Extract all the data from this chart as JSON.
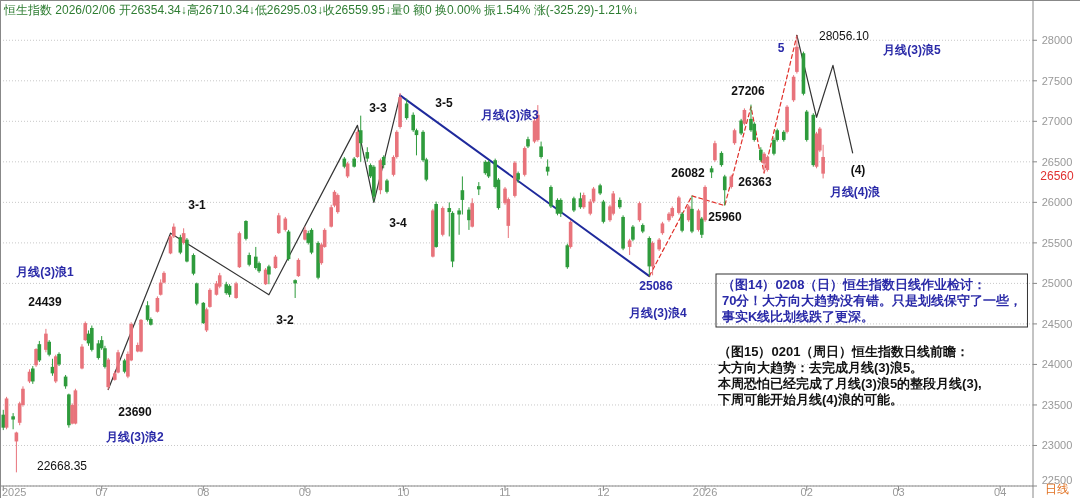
{
  "chart_data": {
    "type": "candlestick",
    "title": "恒生指数 2026/02/06 开26354.34↓高26710.34↓低26295.03↓收26559.95↓量0 额0 换0.00% 振1.54% 涨(-325.29)-1.21%↓",
    "x": [
      "2025-06-01",
      "2025-06-02",
      "2025-06-04",
      "2025-06-05",
      "2025-06-06",
      "2025-06-07",
      "2025-06-09",
      "2025-06-10",
      "2025-06-11",
      "2025-06-12",
      "2025-06-14",
      "2025-06-15",
      "2025-06-16",
      "2025-06-17",
      "2025-06-18",
      "2025-06-20",
      "2025-06-21",
      "2025-06-22",
      "2025-06-23",
      "2025-06-25",
      "2025-06-26",
      "2025-06-27",
      "2025-06-28",
      "2025-06-30",
      "2025-07-01",
      "2025-07-02",
      "2025-07-03",
      "2025-07-05",
      "2025-07-06",
      "2025-07-08",
      "2025-07-09",
      "2025-07-10",
      "2025-07-12",
      "2025-07-13",
      "2025-07-15",
      "2025-07-16",
      "2025-07-18",
      "2025-07-19",
      "2025-07-20",
      "2025-07-22",
      "2025-07-23",
      "2025-07-25",
      "2025-07-26",
      "2025-07-27",
      "2025-07-29",
      "2025-07-30",
      "2025-08-01",
      "2025-08-02",
      "2025-08-03",
      "2025-08-05",
      "2025-08-06",
      "2025-08-08",
      "2025-08-09",
      "2025-08-11",
      "2025-08-12",
      "2025-08-14",
      "2025-08-15",
      "2025-08-17",
      "2025-08-18",
      "2025-08-20",
      "2025-08-21",
      "2025-08-23",
      "2025-08-24",
      "2025-08-26",
      "2025-08-27",
      "2025-08-29",
      "2025-08-30",
      "2025-09-01",
      "2025-09-02",
      "2025-09-03",
      "2025-09-05",
      "2025-09-06",
      "2025-09-07",
      "2025-09-09",
      "2025-09-10",
      "2025-09-11",
      "2025-09-13",
      "2025-09-14",
      "2025-09-16",
      "2025-09-17",
      "2025-09-18",
      "2025-09-20",
      "2025-09-21",
      "2025-09-22",
      "2025-09-24",
      "2025-09-25",
      "2025-09-26",
      "2025-09-28",
      "2025-09-29",
      "2025-09-30",
      "2025-10-02",
      "2025-10-04",
      "2025-10-05",
      "2025-10-07",
      "2025-10-08",
      "2025-10-10",
      "2025-10-11",
      "2025-10-13",
      "2025-10-15",
      "2025-10-16",
      "2025-10-18",
      "2025-10-19",
      "2025-10-21",
      "2025-10-22",
      "2025-10-24",
      "2025-10-26",
      "2025-10-27",
      "2025-10-29",
      "2025-10-30",
      "2025-11-01",
      "2025-11-02",
      "2025-11-04",
      "2025-11-05",
      "2025-11-07",
      "2025-11-08",
      "2025-11-10",
      "2025-11-11",
      "2025-11-12",
      "2025-11-14",
      "2025-11-15",
      "2025-11-17",
      "2025-11-18",
      "2025-11-20",
      "2025-11-21",
      "2025-11-22",
      "2025-11-24",
      "2025-11-25",
      "2025-11-27",
      "2025-11-28",
      "2025-11-30",
      "2025-12-01",
      "2025-12-03",
      "2025-12-04",
      "2025-12-06",
      "2025-12-07",
      "2025-12-09",
      "2025-12-10",
      "2025-12-12",
      "2025-12-13",
      "2025-12-15",
      "2025-12-16",
      "2025-12-18",
      "2025-12-19",
      "2025-12-21",
      "2025-12-22",
      "2025-12-24",
      "2025-12-25",
      "2025-12-27",
      "2025-12-28",
      "2025-12-30",
      "2025-12-31",
      "2026-01-01",
      "2026-01-03",
      "2026-01-04",
      "2026-01-06",
      "2026-01-07",
      "2026-01-09",
      "2026-01-10",
      "2026-01-12",
      "2026-01-13",
      "2026-01-15",
      "2026-01-16",
      "2026-01-18",
      "2026-01-19",
      "2026-01-20",
      "2026-01-22",
      "2026-01-23",
      "2026-01-25",
      "2026-01-26",
      "2026-01-28",
      "2026-01-29",
      "2026-01-31",
      "2026-02-01",
      "2026-02-03",
      "2026-02-04",
      "2026-02-05",
      "2026-02-06"
    ],
    "ohlc": [
      [
        23380,
        23440,
        23190,
        23220
      ],
      [
        23220,
        23600,
        23200,
        23580
      ],
      [
        23360,
        23400,
        23200,
        23320
      ],
      [
        23050,
        23170,
        22668.35,
        23160
      ],
      [
        23280,
        23540,
        23250,
        23520
      ],
      [
        23500,
        23730,
        23480,
        23700
      ],
      [
        23790,
        23940,
        23770,
        23910
      ],
      [
        23950,
        23980,
        23760,
        23790
      ],
      [
        23990,
        24200,
        23970,
        24190
      ],
      [
        24250,
        24290,
        24030,
        24050
      ],
      [
        24180,
        24439,
        24150,
        24380
      ],
      [
        24280,
        24300,
        24100,
        24120
      ],
      [
        23970,
        24070,
        23860,
        23890
      ],
      [
        23790,
        24120,
        23770,
        24100
      ],
      [
        24130,
        24150,
        23980,
        24000
      ],
      [
        23850,
        23870,
        23700,
        23730
      ],
      [
        23630,
        23640,
        23220,
        23250
      ],
      [
        23270,
        23520,
        23260,
        23500
      ],
      [
        23270,
        23700,
        23260,
        23680
      ],
      [
        23950,
        24250,
        23940,
        24220
      ],
      [
        24300,
        24530,
        24290,
        24510
      ],
      [
        24380,
        24420,
        24230,
        24260
      ],
      [
        24450,
        24480,
        24160,
        24180
      ],
      [
        24260,
        24300,
        24060,
        24080
      ],
      [
        24300,
        24350,
        24180,
        24200
      ],
      [
        24200,
        24230,
        23950,
        23970
      ],
      [
        23720,
        24080,
        23690,
        24060
      ],
      [
        23810,
        23920,
        23800,
        23890
      ],
      [
        23900,
        24180,
        23890,
        24150
      ],
      [
        24050,
        24070,
        23890,
        23910
      ],
      [
        23850,
        24160,
        23830,
        24130
      ],
      [
        24050,
        24520,
        24040,
        24500
      ],
      [
        24160,
        24270,
        24150,
        24240
      ],
      [
        24160,
        24560,
        24150,
        24550
      ],
      [
        24730,
        24780,
        24530,
        24550
      ],
      [
        24560,
        24580,
        24480,
        24490
      ],
      [
        24650,
        24840,
        24640,
        24820
      ],
      [
        24860,
        25050,
        24850,
        25010
      ],
      [
        25010,
        25150,
        25000,
        25130
      ],
      [
        25370,
        25600,
        25360,
        25580
      ],
      [
        25580,
        25740,
        25560,
        25700
      ],
      [
        25570,
        25600,
        25360,
        25380
      ],
      [
        25500,
        25680,
        25480,
        25620
      ],
      [
        25540,
        25560,
        25260,
        25270
      ],
      [
        25350,
        25370,
        25100,
        25120
      ],
      [
        25000,
        25010,
        24730,
        24750
      ],
      [
        24760,
        24770,
        24500,
        24510
      ],
      [
        24420,
        24700,
        24400,
        24680
      ],
      [
        24710,
        24940,
        24700,
        24920
      ],
      [
        24860,
        25030,
        24850,
        25000
      ],
      [
        24960,
        25130,
        24940,
        25100
      ],
      [
        24990,
        25020,
        24860,
        24880
      ],
      [
        24970,
        24990,
        24830,
        24860
      ],
      [
        24820,
        25020,
        24810,
        25000
      ],
      [
        25200,
        25640,
        25190,
        25620
      ],
      [
        25770,
        25780,
        25530,
        25550
      ],
      [
        25350,
        25380,
        25210,
        25230
      ],
      [
        25330,
        25450,
        25170,
        25190
      ],
      [
        25250,
        25270,
        25130,
        25150
      ],
      [
        24990,
        25190,
        24980,
        25170
      ],
      [
        25210,
        25230,
        24990,
        25110
      ],
      [
        25190,
        25350,
        25180,
        25330
      ],
      [
        25620,
        25870,
        25610,
        25840
      ],
      [
        25660,
        25820,
        25640,
        25800
      ],
      [
        25640,
        25660,
        25280,
        25300
      ],
      [
        25040,
        25050,
        24820,
        25000
      ],
      [
        25090,
        25310,
        25080,
        25290
      ],
      [
        25540,
        25700,
        25530,
        25660
      ],
      [
        25620,
        25650,
        25480,
        25500
      ],
      [
        25660,
        25680,
        25360,
        25380
      ],
      [
        25500,
        25520,
        25050,
        25070
      ],
      [
        25250,
        25500,
        25230,
        25480
      ],
      [
        25450,
        25680,
        25440,
        25660
      ],
      [
        25700,
        25970,
        25690,
        25940
      ],
      [
        25960,
        26150,
        25940,
        26130
      ],
      [
        25880,
        26110,
        25860,
        26090
      ],
      [
        26540,
        26560,
        26420,
        26440
      ],
      [
        26320,
        26500,
        26300,
        26480
      ],
      [
        26540,
        26560,
        26430,
        26440
      ],
      [
        26560,
        26890,
        26550,
        26870
      ],
      [
        26890,
        27070,
        26500,
        26730
      ],
      [
        26620,
        26680,
        26500,
        26540
      ],
      [
        26460,
        26480,
        26300,
        26320
      ],
      [
        26440,
        26460,
        26010,
        26070
      ],
      [
        26150,
        26540,
        26100,
        26520
      ],
      [
        26560,
        26580,
        26420,
        26460
      ],
      [
        26270,
        26290,
        26110,
        26130
      ],
      [
        26340,
        26580,
        26320,
        26560
      ],
      [
        26560,
        26890,
        26540,
        26870
      ],
      [
        26930,
        27350,
        26910,
        27300
      ],
      [
        27220,
        27280,
        27020,
        27040
      ],
      [
        27080,
        27110,
        26870,
        26890
      ],
      [
        26890,
        26910,
        26580,
        26830
      ],
      [
        26870,
        26890,
        26500,
        26520
      ],
      [
        26530,
        26550,
        26260,
        26280
      ],
      [
        25330,
        25920,
        25320,
        25900
      ],
      [
        25980,
        26010,
        25440,
        25450
      ],
      [
        25600,
        25950,
        25580,
        25930
      ],
      [
        25930,
        26000,
        25580,
        25880
      ],
      [
        25870,
        25890,
        25200,
        25270
      ],
      [
        25900,
        25930,
        25600,
        25850
      ],
      [
        26150,
        26320,
        25850,
        26030
      ],
      [
        25910,
        25940,
        25660,
        25780
      ],
      [
        25700,
        26050,
        25690,
        25990
      ],
      [
        26200,
        26250,
        26090,
        26160
      ],
      [
        26500,
        26520,
        26340,
        26360
      ],
      [
        26500,
        26520,
        26300,
        26320
      ],
      [
        26520,
        26540,
        26170,
        26190
      ],
      [
        26280,
        26300,
        25910,
        25930
      ],
      [
        25990,
        26190,
        25970,
        26170
      ],
      [
        25710,
        26060,
        25560,
        26040
      ],
      [
        26080,
        26510,
        26060,
        26490
      ],
      [
        26360,
        26380,
        26240,
        26280
      ],
      [
        26340,
        26690,
        26320,
        26670
      ],
      [
        26780,
        26810,
        26670,
        26690
      ],
      [
        26750,
        27030,
        26730,
        27010
      ],
      [
        26770,
        27200,
        26750,
        27080
      ],
      [
        26690,
        26750,
        26540,
        26560
      ],
      [
        26440,
        26530,
        26330,
        26380
      ],
      [
        26190,
        26210,
        25930,
        25950
      ],
      [
        26030,
        26050,
        25840,
        25860
      ],
      [
        26030,
        26050,
        25820,
        25860
      ],
      [
        25470,
        25490,
        25180,
        25200
      ],
      [
        25450,
        25780,
        25430,
        25760
      ],
      [
        26050,
        26070,
        25880,
        25900
      ],
      [
        26050,
        26120,
        25920,
        25940
      ],
      [
        25940,
        26120,
        25920,
        26090
      ],
      [
        25860,
        26040,
        25840,
        26010
      ],
      [
        26010,
        26190,
        25990,
        26170
      ],
      [
        26210,
        26230,
        26090,
        26110
      ],
      [
        26010,
        26030,
        25740,
        25760
      ],
      [
        25780,
        25970,
        25760,
        25950
      ],
      [
        25860,
        26140,
        25840,
        26110
      ],
      [
        26030,
        26060,
        25920,
        25940
      ],
      [
        25820,
        25840,
        25410,
        25430
      ],
      [
        25450,
        25550,
        25350,
        25530
      ],
      [
        25700,
        25720,
        25520,
        25540
      ],
      [
        25780,
        26010,
        25760,
        25990
      ],
      [
        25720,
        25740,
        25620,
        25640
      ],
      [
        25560,
        25580,
        25086,
        25210
      ],
      [
        25210,
        25520,
        25100,
        25500
      ],
      [
        25420,
        25560,
        25400,
        25540
      ],
      [
        25620,
        25760,
        25600,
        25740
      ],
      [
        25780,
        25880,
        25760,
        25860
      ],
      [
        25830,
        25950,
        25810,
        25930
      ],
      [
        25870,
        26080,
        25850,
        26060
      ],
      [
        25860,
        25880,
        25630,
        25650
      ],
      [
        25780,
        25970,
        25760,
        25950
      ],
      [
        25920,
        26082,
        25620,
        25640
      ],
      [
        25660,
        25920,
        25640,
        25900
      ],
      [
        25800,
        25820,
        25560,
        25600
      ],
      [
        25780,
        26210,
        25760,
        26190
      ],
      [
        26420,
        26450,
        26300,
        26370
      ],
      [
        26520,
        26760,
        26500,
        26730
      ],
      [
        26610,
        26630,
        26440,
        26460
      ],
      [
        26320,
        26340,
        25960,
        26150
      ],
      [
        26190,
        26340,
        26170,
        26320
      ],
      [
        26730,
        26910,
        26710,
        26890
      ],
      [
        27010,
        27030,
        26830,
        26850
      ],
      [
        26970,
        27160,
        26950,
        27140
      ],
      [
        27030,
        27206,
        26870,
        26890
      ],
      [
        26970,
        26990,
        26750,
        26770
      ],
      [
        26650,
        26680,
        26500,
        26520
      ],
      [
        26480,
        26620,
        26363,
        26600
      ],
      [
        26400,
        26580,
        26380,
        26560
      ],
      [
        26770,
        26800,
        26580,
        26600
      ],
      [
        26890,
        26910,
        26750,
        26770
      ],
      [
        26870,
        26890,
        26750,
        26770
      ],
      [
        26870,
        27200,
        26850,
        27180
      ],
      [
        27260,
        27570,
        27240,
        27550
      ],
      [
        27610,
        28056.1,
        27590,
        27920
      ],
      [
        27840,
        27860,
        27320,
        27340
      ],
      [
        27120,
        27140,
        26750,
        26770
      ],
      [
        27080,
        27100,
        26440,
        26460
      ],
      [
        26440,
        26870,
        26420,
        26850
      ],
      [
        26640,
        26930,
        26620,
        26910
      ],
      [
        26354.34,
        26710.34,
        26295.03,
        26559.95
      ]
    ],
    "colors": [
      "#2e9b3c",
      "#e8737b",
      "#2e9b3c",
      "#e8737b",
      "#e8737b",
      "#e8737b",
      "#e8737b",
      "#2e9b3c",
      "#e8737b",
      "#2e9b3c",
      "#e8737b",
      "#2e9b3c",
      "#2e9b3c",
      "#e8737b",
      "#2e9b3c",
      "#2e9b3c",
      "#2e9b3c",
      "#e8737b",
      "#e8737b",
      "#e8737b",
      "#e8737b",
      "#2e9b3c",
      "#2e9b3c",
      "#2e9b3c",
      "#2e9b3c",
      "#2e9b3c",
      "#e8737b",
      "#e8737b",
      "#e8737b",
      "#2e9b3c",
      "#e8737b",
      "#e8737b",
      "#e8737b",
      "#e8737b",
      "#2e9b3c",
      "#2e9b3c",
      "#e8737b",
      "#e8737b",
      "#e8737b",
      "#e8737b",
      "#e8737b",
      "#2e9b3c",
      "#e8737b",
      "#2e9b3c",
      "#2e9b3c",
      "#2e9b3c",
      "#2e9b3c",
      "#e8737b",
      "#e8737b",
      "#e8737b",
      "#e8737b",
      "#2e9b3c",
      "#2e9b3c",
      "#e8737b",
      "#e8737b",
      "#2e9b3c",
      "#2e9b3c",
      "#2e9b3c",
      "#2e9b3c",
      "#e8737b",
      "#2e9b3c",
      "#e8737b",
      "#e8737b",
      "#e8737b",
      "#2e9b3c",
      "#2e9b3c",
      "#e8737b",
      "#e8737b",
      "#2e9b3c",
      "#2e9b3c",
      "#2e9b3c",
      "#e8737b",
      "#e8737b",
      "#e8737b",
      "#e8737b",
      "#e8737b",
      "#2e9b3c",
      "#e8737b",
      "#2e9b3c",
      "#e8737b",
      "#2e9b3c",
      "#2e9b3c",
      "#2e9b3c",
      "#2e9b3c",
      "#e8737b",
      "#2e9b3c",
      "#2e9b3c",
      "#e8737b",
      "#e8737b",
      "#e8737b",
      "#2e9b3c",
      "#2e9b3c",
      "#2e9b3c",
      "#2e9b3c",
      "#2e9b3c",
      "#e8737b",
      "#2e9b3c",
      "#e8737b",
      "#2e9b3c",
      "#2e9b3c",
      "#2e9b3c",
      "#2e9b3c",
      "#2e9b3c",
      "#e8737b",
      "#2e9b3c",
      "#2e9b3c",
      "#2e9b3c",
      "#2e9b3c",
      "#2e9b3c",
      "#e8737b",
      "#e8737b",
      "#e8737b",
      "#2e9b3c",
      "#e8737b",
      "#2e9b3c",
      "#e8737b",
      "#e8737b",
      "#2e9b3c",
      "#2e9b3c",
      "#2e9b3c",
      "#2e9b3c",
      "#2e9b3c",
      "#2e9b3c",
      "#e8737b",
      "#2e9b3c",
      "#2e9b3c",
      "#e8737b",
      "#e8737b",
      "#e8737b",
      "#2e9b3c",
      "#2e9b3c",
      "#e8737b",
      "#e8737b",
      "#2e9b3c",
      "#2e9b3c",
      "#e8737b",
      "#2e9b3c",
      "#e8737b",
      "#2e9b3c",
      "#2e9b3c",
      "#e8737b",
      "#e8737b",
      "#e8737b",
      "#e8737b",
      "#e8737b",
      "#e8737b",
      "#2e9b3c",
      "#e8737b",
      "#2e9b3c",
      "#e8737b",
      "#2e9b3c",
      "#e8737b",
      "#2e9b3c",
      "#e8737b",
      "#2e9b3c",
      "#2e9b3c",
      "#e8737b",
      "#e8737b",
      "#2e9b3c",
      "#e8737b",
      "#2e9b3c",
      "#2e9b3c",
      "#2e9b3c",
      "#e8737b",
      "#e8737b",
      "#2e9b3c",
      "#2e9b3c",
      "#2e9b3c",
      "#e8737b",
      "#e8737b",
      "#e8737b",
      "#2e9b3c",
      "#2e9b3c",
      "#2e9b3c",
      "#e8737b",
      "#e8737b",
      "#e8737b"
    ],
    "series": [
      {
        "type": "line",
        "color": "#333333",
        "line_style": "solid",
        "x": [
          "2025-07-03",
          "2025-07-22",
          "2025-08-21",
          "2025-09-17",
          "2025-09-22",
          "2025-09-30"
        ],
        "values": [
          23690,
          25620,
          24860,
          26950,
          26000,
          27320
        ]
      },
      {
        "type": "line",
        "color": "#1f2a9c",
        "line_style": "solid",
        "x": [
          "2025-09-30",
          "2025-12-15"
        ],
        "values": [
          27320,
          25090
        ]
      },
      {
        "type": "line",
        "color": "#e0302a",
        "line_style": "dashed",
        "x": [
          "2025-12-15",
          "2025-12-28",
          "2026-01-07",
          "2026-01-15",
          "2026-01-19",
          "2026-01-29"
        ],
        "values": [
          25090,
          26080,
          25960,
          27180,
          26360,
          28060
        ]
      },
      {
        "type": "line",
        "color": "#333333",
        "line_style": "solid",
        "x": [
          "2026-01-29",
          "2026-02-04",
          "2026-02-09",
          "2026-02-15"
        ],
        "values": [
          28060,
          27050,
          27690,
          26610
        ]
      }
    ],
    "xlim": [
      "2025-05-31",
      "2026-04-11"
    ],
    "xticks": [
      {
        "value": "2025-06-01",
        "label": "2025"
      },
      {
        "value": "2025-07-01",
        "label": "07"
      },
      {
        "value": "2025-08-01",
        "label": "08"
      },
      {
        "value": "2025-09-01",
        "label": "09"
      },
      {
        "value": "2025-10-01",
        "label": "10"
      },
      {
        "value": "2025-11-01",
        "label": "11"
      },
      {
        "value": "2025-12-01",
        "label": "12"
      },
      {
        "value": "2026-01-01",
        "label": "2026"
      },
      {
        "value": "2026-02-01",
        "label": "02"
      },
      {
        "value": "2026-03-01",
        "label": "03"
      },
      {
        "value": "2026-04-01",
        "label": "04"
      }
    ],
    "ylim": [
      22500,
      28460
    ],
    "yticks": [
      22500,
      23000,
      23500,
      24000,
      24500,
      25000,
      25500,
      26000,
      26500,
      27000,
      27500,
      28000
    ],
    "grid": "y",
    "annotations": [
      "（图14）0208（日）恒生指数日线作业检讨：",
      "70分！大方向大趋势没有错。只是划线保守了一些，事实K线比划线跌了更深。",
      "（图15）0201（周日）恒生指数日线前瞻：",
      "大方向大趋势：去完成月线(3)浪5。",
      "本周恐怕已经完成了月线(3)浪5的整段月线(3),",
      "下周可能开始月线(4)浪的可能。",
      "日线",
      "26560",
      "月线(3)浪1",
      "24439",
      "23690",
      "月线(3)浪2",
      "22668.35",
      "3-1",
      "3-2",
      "3-3",
      "3-4",
      "3-5",
      "月线(3)浪3",
      "25086",
      "月线(3)浪4",
      "26082",
      "25960",
      "27206",
      "26363",
      "5",
      "28056.10",
      "月线(3)浪5",
      "(4)",
      "月线(4)浪"
    ]
  }
}
